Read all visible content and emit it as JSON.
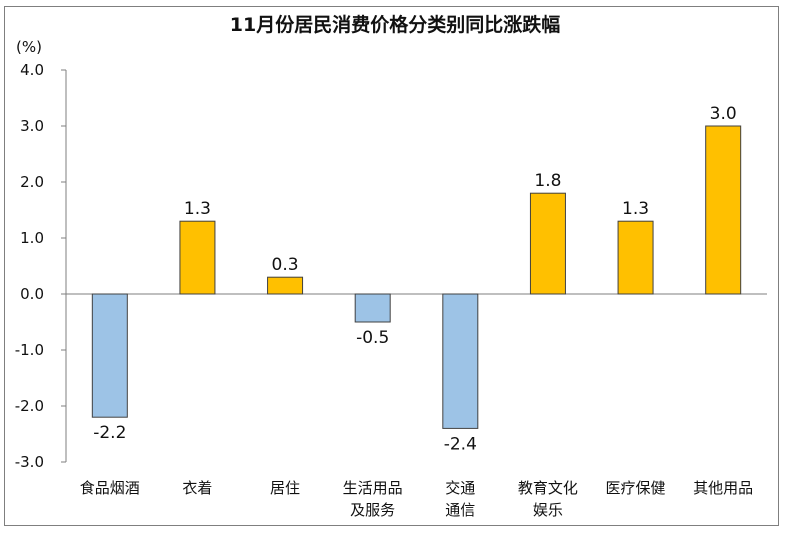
{
  "chart_data": {
    "type": "bar",
    "title": "11月份居民消费价格分类别同比涨跌幅",
    "unit": "(%)",
    "categories": [
      "食品烟酒",
      "衣着",
      "居住",
      "生活用品及服务",
      "交通通信",
      "教育文化娱乐",
      "医疗保健",
      "其他用品"
    ],
    "category_lines": [
      [
        "食品烟酒"
      ],
      [
        "衣着"
      ],
      [
        "居住"
      ],
      [
        "生活用品",
        "及服务"
      ],
      [
        "交通",
        "通信"
      ],
      [
        "教育文化",
        "娱乐"
      ],
      [
        "医疗保健"
      ],
      [
        "其他用品"
      ]
    ],
    "values": [
      -2.2,
      1.3,
      0.3,
      -0.5,
      -2.4,
      1.8,
      1.3,
      3.0
    ],
    "value_labels": [
      "-2.2",
      "1.3",
      "0.3",
      "-0.5",
      "-2.4",
      "1.8",
      "1.3",
      "3.0"
    ],
    "ylim": [
      -3.0,
      4.0
    ],
    "yticks": [
      4.0,
      3.0,
      2.0,
      1.0,
      0.0,
      -1.0,
      -2.0,
      -3.0
    ],
    "ytick_labels": [
      "4.0",
      "3.0",
      "2.0",
      "1.0",
      "0.0",
      "-1.0",
      "-2.0",
      "-3.0"
    ],
    "colors": {
      "positive": "#FFC000",
      "negative": "#9DC3E6",
      "edge": "#404040"
    },
    "grid": false,
    "legend": "none"
  }
}
